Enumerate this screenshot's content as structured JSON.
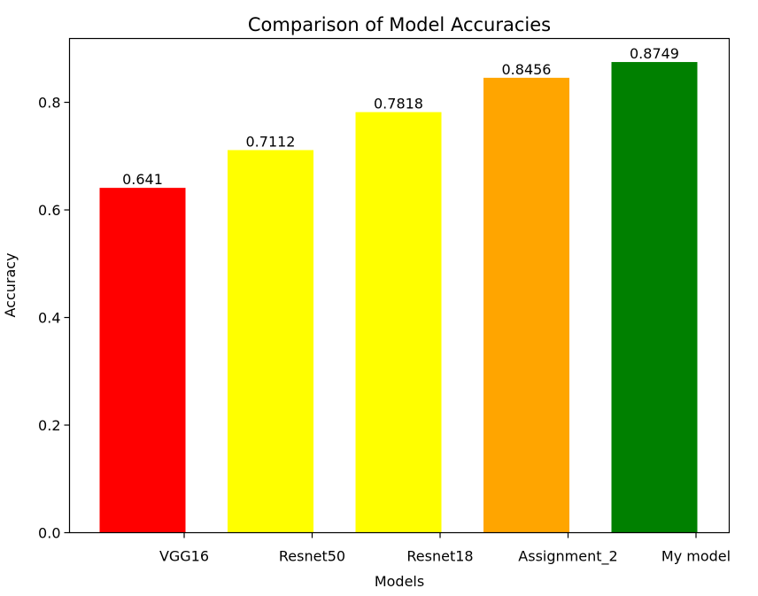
{
  "chart_data": {
    "type": "bar",
    "title": "Comparison of Model Accuracies",
    "xlabel": "Models",
    "ylabel": "Accuracy",
    "categories": [
      "VGG16",
      "Resnet50",
      "Resnet18",
      "Assignment_2",
      "My model"
    ],
    "values": [
      0.641,
      0.7112,
      0.7818,
      0.8456,
      0.8749
    ],
    "value_labels": [
      "0.641",
      "0.7112",
      "0.7818",
      "0.8456",
      "0.8749"
    ],
    "colors": [
      "#ff0000",
      "#ffff00",
      "#ffff00",
      "#ffa500",
      "#008000"
    ],
    "ylim": [
      0,
      0.9186
    ],
    "yticks": [
      0.0,
      0.2,
      0.4,
      0.6,
      0.8
    ],
    "ytick_labels": [
      "0.0",
      "0.2",
      "0.4",
      "0.6",
      "0.8"
    ],
    "grid": false,
    "legend": false
  }
}
